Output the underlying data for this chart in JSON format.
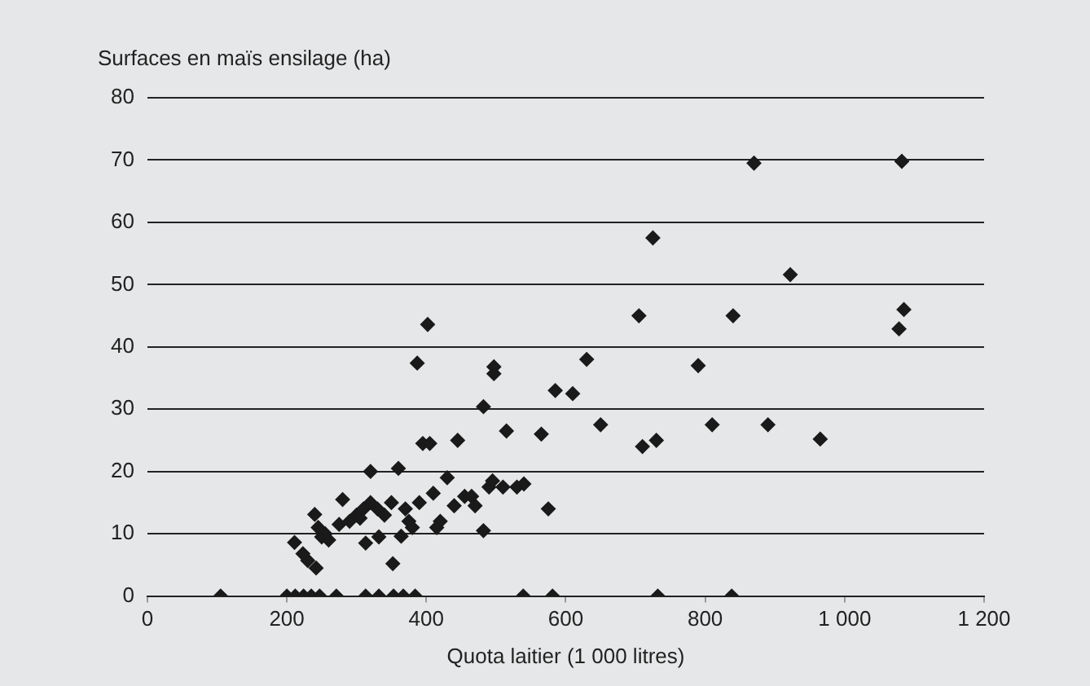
{
  "chart_data": {
    "type": "scatter",
    "xlabel": "Quota laitier (1 000 litres)",
    "ylabel": "Surfaces en maïs ensilage (ha)",
    "x": [
      105,
      200,
      212,
      224,
      235,
      247,
      271,
      313,
      332,
      353,
      367,
      384,
      539,
      581,
      732,
      838,
      211,
      223,
      230,
      242,
      240,
      245,
      250,
      255,
      260,
      275,
      280,
      290,
      300,
      305,
      310,
      313,
      320,
      320,
      330,
      332,
      340,
      350,
      352,
      360,
      364,
      370,
      375,
      380,
      387,
      390,
      395,
      402,
      405,
      410,
      415,
      420,
      430,
      440,
      445,
      455,
      465,
      470,
      482,
      482,
      490,
      495,
      497,
      497,
      510,
      515,
      530,
      540,
      565,
      575,
      585,
      610,
      630,
      650,
      705,
      710,
      725,
      730,
      790,
      810,
      840,
      870,
      890,
      922,
      965,
      1078,
      1085,
      1082
    ],
    "values": [
      0,
      0,
      0,
      0,
      0,
      0,
      0,
      0,
      0,
      0,
      0,
      0,
      0,
      0,
      0,
      0,
      8.6,
      6.8,
      5.7,
      4.5,
      13.1,
      11,
      9.5,
      10,
      9,
      11.5,
      15.5,
      12,
      13,
      12.5,
      14,
      8.5,
      15,
      20,
      14,
      9.5,
      13,
      15,
      5.2,
      20.5,
      9.6,
      14,
      12,
      11,
      37.4,
      15,
      24.5,
      43.6,
      24.5,
      16.5,
      11,
      12,
      19,
      14.5,
      25,
      16,
      16,
      14.5,
      10.5,
      30.4,
      17.5,
      18.5,
      36.8,
      35.7,
      17.5,
      26.5,
      17.5,
      18,
      26,
      14,
      33,
      32.5,
      38,
      27.5,
      45,
      24,
      57.5,
      25,
      37,
      27.5,
      45,
      69.5,
      27.5,
      51.6,
      25.2,
      42.9,
      46,
      69.8
    ],
    "color": "#1a1a1a",
    "marker": "diamond",
    "xlim": [
      0,
      1200
    ],
    "ylim": [
      0,
      80
    ],
    "xticks": [
      0,
      200,
      400,
      600,
      800,
      {
        "value": 1000,
        "label": "1 000"
      },
      {
        "value": 1200,
        "label": "1 200"
      }
    ],
    "yticks": [
      0,
      10,
      20,
      30,
      40,
      50,
      60,
      70,
      80
    ],
    "grid": "y",
    "legend": false
  }
}
